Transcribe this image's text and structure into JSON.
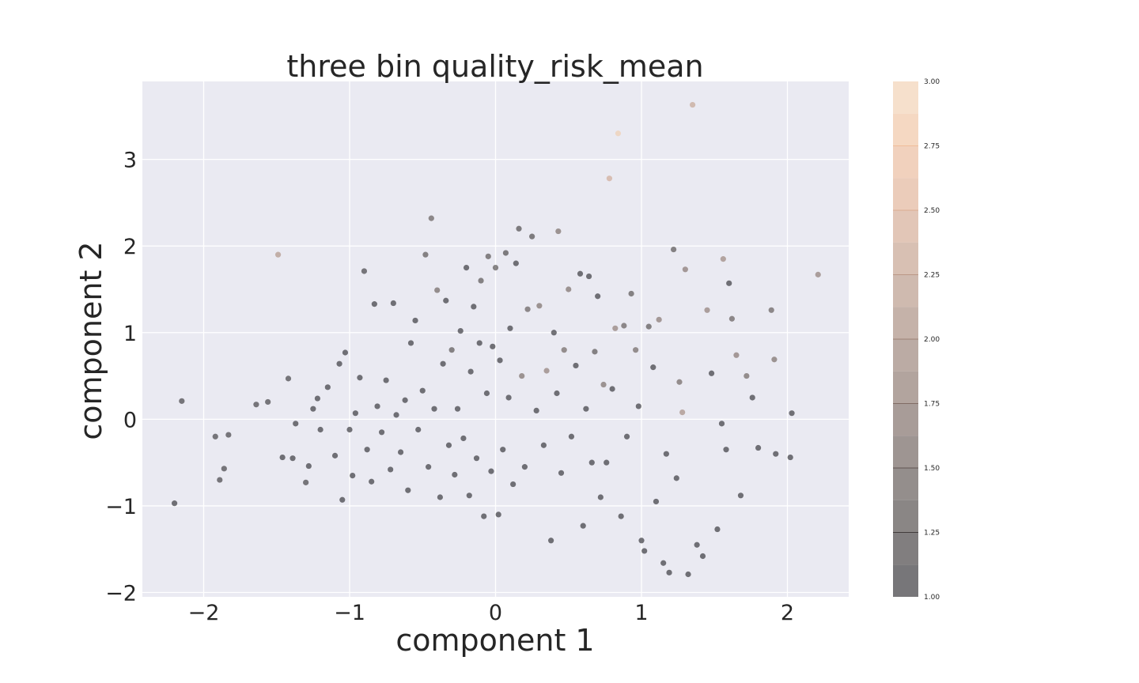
{
  "chart_data": {
    "type": "scatter",
    "title": "three bin quality_risk_mean",
    "xlabel": "component 1",
    "ylabel": "component 2",
    "xlim": [
      -2.42,
      2.42
    ],
    "ylim": [
      -2.05,
      3.9
    ],
    "xticks": [
      -2,
      -1,
      0,
      1,
      2
    ],
    "xtick_labels": [
      "−2",
      "−1",
      "0",
      "1",
      "2"
    ],
    "yticks": [
      -2,
      -1,
      0,
      1,
      2,
      3
    ],
    "ytick_labels": [
      "−2",
      "−1",
      "0",
      "1",
      "2",
      "3"
    ],
    "grid": true,
    "background": "#eaeaf2",
    "colorbar": {
      "min": 1.0,
      "max": 3.0,
      "ticks": [
        1.0,
        1.25,
        1.5,
        1.75,
        2.0,
        2.25,
        2.5,
        2.75,
        3.0
      ],
      "tick_labels": [
        "1.00",
        "1.25",
        "1.50",
        "1.75",
        "2.00",
        "2.25",
        "2.50",
        "2.75",
        "3.00"
      ],
      "colors": [
        "#1c1c22",
        "#3a3535",
        "#5a4e4a",
        "#7a665e",
        "#9a7d70",
        "#b89582",
        "#d8a88e",
        "#eeb996",
        "#f2d3b3"
      ]
    },
    "points": [
      {
        "x": -2.2,
        "y": -0.97,
        "v": 1.0
      },
      {
        "x": -2.15,
        "y": 0.21,
        "v": 1.1
      },
      {
        "x": -1.92,
        "y": -0.2,
        "v": 1.1
      },
      {
        "x": -1.89,
        "y": -0.7,
        "v": 1.1
      },
      {
        "x": -1.86,
        "y": -0.57,
        "v": 1.1
      },
      {
        "x": -1.83,
        "y": -0.18,
        "v": 1.1
      },
      {
        "x": -1.64,
        "y": 0.17,
        "v": 1.1
      },
      {
        "x": -1.56,
        "y": 0.2,
        "v": 1.1
      },
      {
        "x": -1.49,
        "y": 1.9,
        "v": 2.1
      },
      {
        "x": -1.46,
        "y": -0.44,
        "v": 1.0
      },
      {
        "x": -1.42,
        "y": 0.47,
        "v": 1.1
      },
      {
        "x": -1.39,
        "y": -0.45,
        "v": 1.0
      },
      {
        "x": -1.37,
        "y": -0.05,
        "v": 1.0
      },
      {
        "x": -1.3,
        "y": -0.73,
        "v": 1.1
      },
      {
        "x": -1.28,
        "y": -0.54,
        "v": 1.0
      },
      {
        "x": -1.25,
        "y": 0.12,
        "v": 1.0
      },
      {
        "x": -1.22,
        "y": 0.24,
        "v": 1.0
      },
      {
        "x": -1.2,
        "y": -0.12,
        "v": 1.0
      },
      {
        "x": -1.15,
        "y": 0.37,
        "v": 1.0
      },
      {
        "x": -1.1,
        "y": -0.42,
        "v": 1.0
      },
      {
        "x": -1.07,
        "y": 0.64,
        "v": 1.0
      },
      {
        "x": -1.05,
        "y": -0.93,
        "v": 1.0
      },
      {
        "x": -1.03,
        "y": 0.77,
        "v": 1.0
      },
      {
        "x": -1.0,
        "y": -0.12,
        "v": 1.0
      },
      {
        "x": -0.98,
        "y": -0.65,
        "v": 1.0
      },
      {
        "x": -0.96,
        "y": 0.07,
        "v": 1.0
      },
      {
        "x": -0.93,
        "y": 0.48,
        "v": 1.0
      },
      {
        "x": -0.9,
        "y": 1.71,
        "v": 1.1
      },
      {
        "x": -0.88,
        "y": -0.35,
        "v": 1.0
      },
      {
        "x": -0.85,
        "y": -0.72,
        "v": 1.0
      },
      {
        "x": -0.83,
        "y": 1.33,
        "v": 1.0
      },
      {
        "x": -0.81,
        "y": 0.15,
        "v": 1.0
      },
      {
        "x": -0.78,
        "y": -0.15,
        "v": 1.0
      },
      {
        "x": -0.75,
        "y": 0.45,
        "v": 1.0
      },
      {
        "x": -0.72,
        "y": -0.58,
        "v": 1.0
      },
      {
        "x": -0.7,
        "y": 1.34,
        "v": 1.0
      },
      {
        "x": -0.68,
        "y": 0.05,
        "v": 1.0
      },
      {
        "x": -0.65,
        "y": -0.38,
        "v": 1.0
      },
      {
        "x": -0.62,
        "y": 0.22,
        "v": 1.0
      },
      {
        "x": -0.6,
        "y": -0.82,
        "v": 1.0
      },
      {
        "x": -0.58,
        "y": 0.88,
        "v": 1.0
      },
      {
        "x": -0.55,
        "y": 1.14,
        "v": 1.0
      },
      {
        "x": -0.53,
        "y": -0.12,
        "v": 1.0
      },
      {
        "x": -0.5,
        "y": 0.33,
        "v": 1.0
      },
      {
        "x": -0.48,
        "y": 1.9,
        "v": 1.3
      },
      {
        "x": -0.46,
        "y": -0.55,
        "v": 1.0
      },
      {
        "x": -0.44,
        "y": 2.32,
        "v": 1.4
      },
      {
        "x": -0.42,
        "y": 0.12,
        "v": 1.0
      },
      {
        "x": -0.4,
        "y": 1.49,
        "v": 1.5
      },
      {
        "x": -0.38,
        "y": -0.9,
        "v": 1.0
      },
      {
        "x": -0.36,
        "y": 0.64,
        "v": 1.0
      },
      {
        "x": -0.34,
        "y": 1.37,
        "v": 1.0
      },
      {
        "x": -0.32,
        "y": -0.3,
        "v": 1.0
      },
      {
        "x": -0.3,
        "y": 0.8,
        "v": 1.3
      },
      {
        "x": -0.28,
        "y": -0.64,
        "v": 1.0
      },
      {
        "x": -0.26,
        "y": 0.12,
        "v": 1.0
      },
      {
        "x": -0.24,
        "y": 1.02,
        "v": 1.0
      },
      {
        "x": -0.22,
        "y": -0.22,
        "v": 1.0
      },
      {
        "x": -0.2,
        "y": 1.75,
        "v": 1.0
      },
      {
        "x": -0.18,
        "y": -0.88,
        "v": 1.0
      },
      {
        "x": -0.17,
        "y": 0.55,
        "v": 1.0
      },
      {
        "x": -0.15,
        "y": 1.3,
        "v": 1.0
      },
      {
        "x": -0.13,
        "y": -0.45,
        "v": 1.0
      },
      {
        "x": -0.11,
        "y": 0.88,
        "v": 1.0
      },
      {
        "x": -0.1,
        "y": 1.6,
        "v": 1.3
      },
      {
        "x": -0.08,
        "y": -1.12,
        "v": 1.0
      },
      {
        "x": -0.06,
        "y": 0.3,
        "v": 1.0
      },
      {
        "x": -0.05,
        "y": 1.88,
        "v": 1.3
      },
      {
        "x": -0.03,
        "y": -0.6,
        "v": 1.0
      },
      {
        "x": -0.02,
        "y": 0.84,
        "v": 1.0
      },
      {
        "x": 0.0,
        "y": 1.75,
        "v": 1.3
      },
      {
        "x": 0.02,
        "y": -1.1,
        "v": 1.0
      },
      {
        "x": 0.03,
        "y": 0.68,
        "v": 1.0
      },
      {
        "x": 0.05,
        "y": -0.35,
        "v": 1.0
      },
      {
        "x": 0.07,
        "y": 1.92,
        "v": 1.2
      },
      {
        "x": 0.09,
        "y": 0.25,
        "v": 1.0
      },
      {
        "x": 0.1,
        "y": 1.05,
        "v": 1.0
      },
      {
        "x": 0.12,
        "y": -0.75,
        "v": 1.0
      },
      {
        "x": 0.14,
        "y": 1.8,
        "v": 1.0
      },
      {
        "x": 0.16,
        "y": 2.2,
        "v": 1.2
      },
      {
        "x": 0.18,
        "y": 0.5,
        "v": 1.6
      },
      {
        "x": 0.2,
        "y": -0.55,
        "v": 1.0
      },
      {
        "x": 0.22,
        "y": 1.27,
        "v": 1.4
      },
      {
        "x": 0.25,
        "y": 2.11,
        "v": 1.2
      },
      {
        "x": 0.28,
        "y": 0.1,
        "v": 1.0
      },
      {
        "x": 0.3,
        "y": 1.31,
        "v": 1.6
      },
      {
        "x": 0.33,
        "y": -0.3,
        "v": 1.0
      },
      {
        "x": 0.35,
        "y": 0.56,
        "v": 1.8
      },
      {
        "x": 0.38,
        "y": -1.4,
        "v": 1.0
      },
      {
        "x": 0.4,
        "y": 1.0,
        "v": 1.0
      },
      {
        "x": 0.42,
        "y": 0.3,
        "v": 1.0
      },
      {
        "x": 0.43,
        "y": 2.17,
        "v": 1.6
      },
      {
        "x": 0.45,
        "y": -0.62,
        "v": 1.0
      },
      {
        "x": 0.47,
        "y": 0.8,
        "v": 1.5
      },
      {
        "x": 0.5,
        "y": 1.5,
        "v": 1.6
      },
      {
        "x": 0.52,
        "y": -0.2,
        "v": 1.0
      },
      {
        "x": 0.55,
        "y": 0.62,
        "v": 1.0
      },
      {
        "x": 0.58,
        "y": 1.68,
        "v": 1.0
      },
      {
        "x": 0.6,
        "y": -1.23,
        "v": 1.0
      },
      {
        "x": 0.62,
        "y": 0.12,
        "v": 1.0
      },
      {
        "x": 0.64,
        "y": 1.65,
        "v": 1.0
      },
      {
        "x": 0.66,
        "y": -0.5,
        "v": 1.0
      },
      {
        "x": 0.68,
        "y": 0.78,
        "v": 1.3
      },
      {
        "x": 0.7,
        "y": 1.42,
        "v": 1.0
      },
      {
        "x": 0.72,
        "y": -0.9,
        "v": 1.0
      },
      {
        "x": 0.74,
        "y": 0.4,
        "v": 1.6
      },
      {
        "x": 0.76,
        "y": -0.5,
        "v": 1.0
      },
      {
        "x": 0.78,
        "y": 2.78,
        "v": 2.4
      },
      {
        "x": 0.8,
        "y": 0.35,
        "v": 1.0
      },
      {
        "x": 0.82,
        "y": 1.05,
        "v": 1.8
      },
      {
        "x": 0.84,
        "y": 3.3,
        "v": 2.9
      },
      {
        "x": 0.86,
        "y": -1.12,
        "v": 1.0
      },
      {
        "x": 0.88,
        "y": 1.08,
        "v": 1.4
      },
      {
        "x": 0.9,
        "y": -0.2,
        "v": 1.0
      },
      {
        "x": 0.93,
        "y": 1.45,
        "v": 1.3
      },
      {
        "x": 0.96,
        "y": 0.8,
        "v": 1.5
      },
      {
        "x": 0.98,
        "y": 0.15,
        "v": 1.0
      },
      {
        "x": 1.0,
        "y": -1.4,
        "v": 1.0
      },
      {
        "x": 1.02,
        "y": -1.52,
        "v": 1.0
      },
      {
        "x": 1.05,
        "y": 1.07,
        "v": 1.3
      },
      {
        "x": 1.08,
        "y": 0.6,
        "v": 1.0
      },
      {
        "x": 1.1,
        "y": -0.95,
        "v": 1.0
      },
      {
        "x": 1.12,
        "y": 1.15,
        "v": 1.7
      },
      {
        "x": 1.15,
        "y": -1.66,
        "v": 1.0
      },
      {
        "x": 1.17,
        "y": -0.4,
        "v": 1.0
      },
      {
        "x": 1.19,
        "y": -1.77,
        "v": 1.0
      },
      {
        "x": 1.22,
        "y": 1.96,
        "v": 1.3
      },
      {
        "x": 1.24,
        "y": -0.68,
        "v": 1.0
      },
      {
        "x": 1.26,
        "y": 0.43,
        "v": 1.5
      },
      {
        "x": 1.28,
        "y": 0.08,
        "v": 2.0
      },
      {
        "x": 1.3,
        "y": 1.73,
        "v": 1.7
      },
      {
        "x": 1.32,
        "y": -1.79,
        "v": 1.0
      },
      {
        "x": 1.35,
        "y": 3.63,
        "v": 2.3
      },
      {
        "x": 1.38,
        "y": -1.45,
        "v": 1.0
      },
      {
        "x": 1.42,
        "y": -1.58,
        "v": 1.0
      },
      {
        "x": 1.45,
        "y": 1.26,
        "v": 1.8
      },
      {
        "x": 1.48,
        "y": 0.53,
        "v": 1.0
      },
      {
        "x": 1.52,
        "y": -1.27,
        "v": 1.0
      },
      {
        "x": 1.55,
        "y": -0.05,
        "v": 1.0
      },
      {
        "x": 1.56,
        "y": 1.85,
        "v": 1.9
      },
      {
        "x": 1.58,
        "y": -0.35,
        "v": 1.0
      },
      {
        "x": 1.6,
        "y": 1.57,
        "v": 1.0
      },
      {
        "x": 1.62,
        "y": 1.16,
        "v": 1.4
      },
      {
        "x": 1.65,
        "y": 0.74,
        "v": 1.7
      },
      {
        "x": 1.68,
        "y": -0.88,
        "v": 1.0
      },
      {
        "x": 1.72,
        "y": 0.5,
        "v": 1.5
      },
      {
        "x": 1.76,
        "y": 0.25,
        "v": 1.0
      },
      {
        "x": 1.8,
        "y": -0.33,
        "v": 1.0
      },
      {
        "x": 1.89,
        "y": 1.26,
        "v": 1.4
      },
      {
        "x": 1.91,
        "y": 0.69,
        "v": 1.6
      },
      {
        "x": 1.92,
        "y": -0.4,
        "v": 1.0
      },
      {
        "x": 2.02,
        "y": -0.44,
        "v": 1.0
      },
      {
        "x": 2.03,
        "y": 0.07,
        "v": 1.0
      },
      {
        "x": 2.21,
        "y": 1.67,
        "v": 1.8
      }
    ]
  }
}
